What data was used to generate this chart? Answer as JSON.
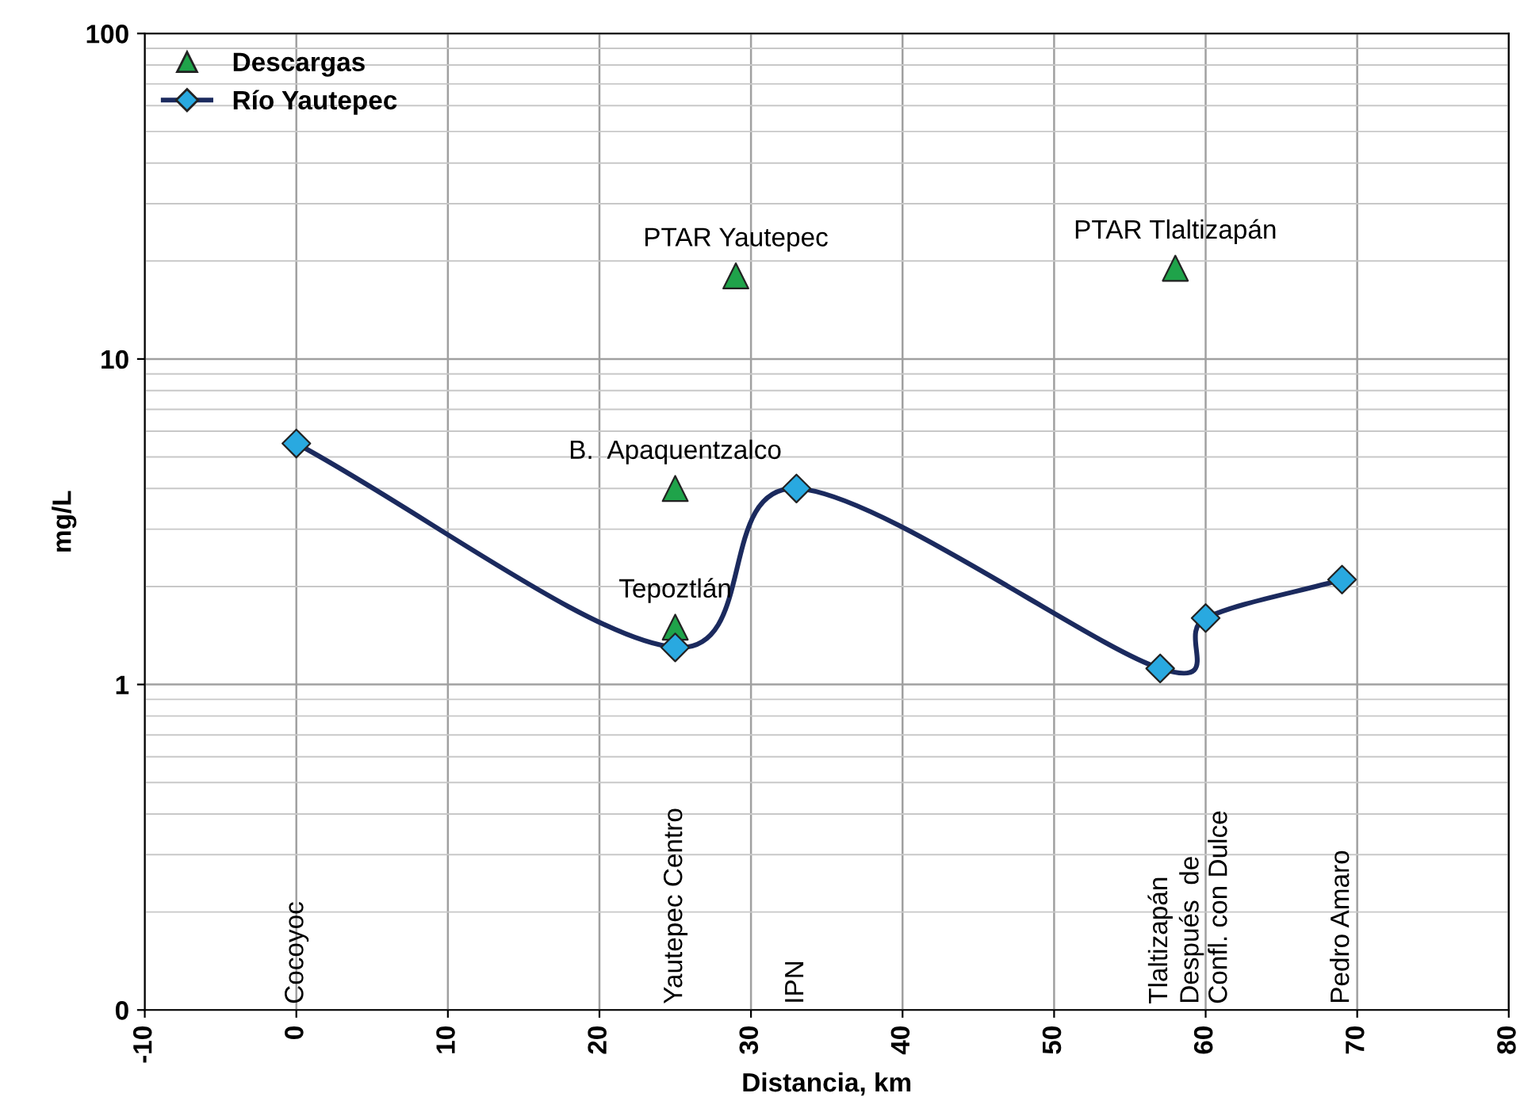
{
  "chart_data": {
    "type": "line",
    "xlabel": "Distancia, km",
    "ylabel": "mg/L",
    "xlim": [
      -10,
      80
    ],
    "xticks": [
      -10,
      0,
      10,
      20,
      30,
      40,
      50,
      60,
      70,
      80
    ],
    "ylim": [
      0.1,
      100
    ],
    "yticks": [
      {
        "value": 0.1,
        "label": "0"
      },
      1,
      10,
      100
    ],
    "log": "y",
    "grid": true,
    "legend": "top left",
    "series": [
      {
        "name": "Descargas",
        "type": "scatter",
        "marker": "triangle",
        "color": "#1fa34a",
        "x": [
          25,
          25,
          29,
          58
        ],
        "values": [
          4.0,
          1.5,
          18,
          19
        ]
      },
      {
        "name": "Río Yautepec",
        "marker": "diamond",
        "color": "#1b2a5e",
        "colors": [
          "#29a9e0",
          "#29a9e0",
          "#29a9e0",
          "#29a9e0",
          "#29a9e0",
          "#29a9e0"
        ],
        "x": [
          0,
          25,
          33,
          57,
          60,
          69
        ],
        "values": [
          5.5,
          1.3,
          4.0,
          1.12,
          1.6,
          2.1
        ]
      }
    ],
    "annotations": [
      {
        "text": "PTAR Yautepec",
        "x": 29,
        "y": 18
      },
      {
        "text": "PTAR Tlaltizapán",
        "x": 58,
        "y": 19
      },
      {
        "text": "B.  Apaquentzalco",
        "x": 25,
        "y": 4.0
      },
      {
        "text": "Tepoztlán",
        "x": 25,
        "y": 1.5
      },
      "Cocoyoc",
      "Yautepec Centro",
      "IPN",
      "Tlaltizapán",
      "Después  de\nConfl. con Dulce",
      "Pedro Amaro"
    ]
  }
}
